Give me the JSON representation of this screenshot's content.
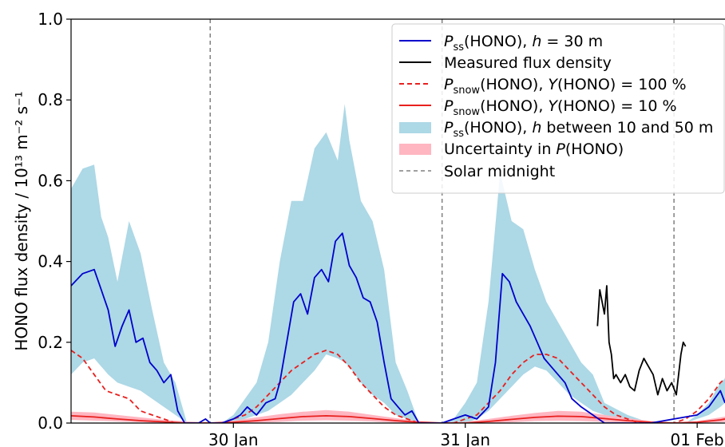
{
  "chart_data": {
    "type": "line",
    "title": "",
    "xlabel": "",
    "ylabel": "HONO flux density / 10¹³ m⁻² s⁻¹",
    "ylim": [
      0.0,
      1.0
    ],
    "xlim": [
      29.3,
      32.12
    ],
    "y_ticks": [
      "0.0",
      "0.2",
      "0.4",
      "0.6",
      "0.8",
      "1.0"
    ],
    "x_ticks": [
      {
        "x": 30.0,
        "label": "30 Jan"
      },
      {
        "x": 31.0,
        "label": "31 Jan"
      },
      {
        "x": 32.0,
        "label": "01 Feb"
      }
    ],
    "grid": false,
    "legend_position": "top-right",
    "legend": {
      "pss_h30": {
        "base": "P",
        "sub": "ss",
        "text": "(HONO), ",
        "var": "h",
        "rest": " = 30 m"
      },
      "measured": {
        "text": "Measured flux density"
      },
      "snow100": {
        "base": "P",
        "sub": "snow",
        "text": "(HONO), ",
        "var": "Y",
        "rest": "(HONO) = 100 %"
      },
      "snow10": {
        "base": "P",
        "sub": "snow",
        "text": "(HONO), ",
        "var": "Y",
        "rest": "(HONO) = 10 %"
      },
      "pss_range": {
        "base": "P",
        "sub": "ss",
        "text": "(HONO), ",
        "var": "h",
        "rest": " between 10 and 50 m"
      },
      "uncertainty": {
        "pre": "Uncertainty in ",
        "base": "P",
        "rest": "(HONO)"
      },
      "midnight": {
        "text": "Solar midnight"
      }
    },
    "colors": {
      "pss_h30": "#0000cc",
      "measured": "#000000",
      "snow": "#e8201e",
      "pss_range": "#add8e6",
      "uncertainty": "#ffb6c1",
      "midnight": "#808080"
    },
    "solar_midnight": [
      29.9,
      30.9,
      31.9
    ],
    "series": [
      {
        "key": "pss_h30",
        "x": [
          29.3,
          29.35,
          29.4,
          29.43,
          29.46,
          29.49,
          29.52,
          29.55,
          29.58,
          29.61,
          29.64,
          29.67,
          29.7,
          29.73,
          29.76,
          29.79,
          29.82,
          29.85,
          29.88,
          29.9,
          29.95,
          30.0,
          30.03,
          30.06,
          30.1,
          30.14,
          30.18,
          30.2,
          30.23,
          30.26,
          30.29,
          30.32,
          30.35,
          30.38,
          30.41,
          30.44,
          30.47,
          30.5,
          30.53,
          30.56,
          30.59,
          30.62,
          30.65,
          30.68,
          30.71,
          30.74,
          30.77,
          30.8,
          30.85,
          30.9,
          30.95,
          31.0,
          31.05,
          31.1,
          31.13,
          31.16,
          31.19,
          31.22,
          31.25,
          31.28,
          31.31,
          31.34,
          31.37,
          31.4,
          31.43,
          31.46,
          31.5,
          31.55,
          31.6,
          31.65,
          31.7,
          31.8,
          31.9,
          32.0,
          32.05,
          32.1,
          32.12
        ],
        "y": [
          0.34,
          0.37,
          0.38,
          0.33,
          0.28,
          0.19,
          0.24,
          0.28,
          0.2,
          0.21,
          0.15,
          0.13,
          0.1,
          0.12,
          0.03,
          0.0,
          0.0,
          0.0,
          0.01,
          0.0,
          0.0,
          0.01,
          0.02,
          0.04,
          0.02,
          0.05,
          0.06,
          0.1,
          0.2,
          0.3,
          0.32,
          0.27,
          0.36,
          0.38,
          0.35,
          0.45,
          0.47,
          0.39,
          0.36,
          0.31,
          0.3,
          0.25,
          0.15,
          0.06,
          0.04,
          0.02,
          0.03,
          0.0,
          0.0,
          0.0,
          0.01,
          0.02,
          0.01,
          0.04,
          0.15,
          0.37,
          0.35,
          0.3,
          0.27,
          0.24,
          0.2,
          0.16,
          0.14,
          0.12,
          0.1,
          0.06,
          0.04,
          0.02,
          0.0,
          0.0,
          0.0,
          0.0,
          0.01,
          0.02,
          0.04,
          0.08,
          0.05
        ]
      },
      {
        "key": "measured",
        "x": [
          31.57,
          31.58,
          31.6,
          31.61,
          31.62,
          31.63,
          31.64,
          31.65,
          31.67,
          31.69,
          31.71,
          31.73,
          31.75,
          31.77,
          31.79,
          31.81,
          31.83,
          31.85,
          31.87,
          31.89,
          31.91,
          31.93,
          31.94,
          31.95
        ],
        "y": [
          0.24,
          0.33,
          0.27,
          0.34,
          0.2,
          0.17,
          0.11,
          0.12,
          0.1,
          0.12,
          0.09,
          0.08,
          0.13,
          0.16,
          0.14,
          0.12,
          0.07,
          0.11,
          0.08,
          0.1,
          0.07,
          0.17,
          0.2,
          0.19
        ]
      },
      {
        "key": "snow100",
        "x": [
          29.3,
          29.35,
          29.4,
          29.45,
          29.5,
          29.55,
          29.6,
          29.65,
          29.7,
          29.75,
          29.8,
          29.85,
          29.9,
          29.95,
          30.0,
          30.05,
          30.1,
          30.15,
          30.2,
          30.25,
          30.3,
          30.35,
          30.4,
          30.45,
          30.5,
          30.55,
          30.6,
          30.65,
          30.7,
          30.75,
          30.8,
          30.85,
          30.9,
          30.95,
          31.0,
          31.05,
          31.1,
          31.15,
          31.2,
          31.25,
          31.3,
          31.35,
          31.4,
          31.45,
          31.5,
          31.55,
          31.6,
          31.65,
          31.7,
          31.75,
          31.8,
          31.85,
          31.9,
          31.95,
          32.0,
          32.05,
          32.1,
          32.12
        ],
        "y": [
          0.18,
          0.16,
          0.12,
          0.08,
          0.07,
          0.06,
          0.03,
          0.02,
          0.01,
          0.0,
          0.0,
          0.0,
          0.0,
          0.0,
          0.01,
          0.02,
          0.04,
          0.07,
          0.1,
          0.13,
          0.15,
          0.17,
          0.18,
          0.17,
          0.14,
          0.1,
          0.07,
          0.04,
          0.02,
          0.01,
          0.0,
          0.0,
          0.0,
          0.0,
          0.01,
          0.02,
          0.05,
          0.08,
          0.12,
          0.15,
          0.17,
          0.17,
          0.16,
          0.13,
          0.1,
          0.07,
          0.04,
          0.02,
          0.01,
          0.0,
          0.0,
          0.0,
          0.0,
          0.01,
          0.03,
          0.06,
          0.1,
          0.11
        ]
      },
      {
        "key": "snow10",
        "x": [
          29.3,
          29.4,
          29.5,
          29.6,
          29.7,
          29.8,
          29.9,
          30.0,
          30.1,
          30.2,
          30.3,
          30.4,
          30.5,
          30.6,
          30.7,
          30.8,
          30.9,
          31.0,
          31.1,
          31.2,
          31.3,
          31.4,
          31.5,
          31.6,
          31.7,
          31.8,
          31.9,
          32.0,
          32.1,
          32.12
        ],
        "y": [
          0.018,
          0.015,
          0.01,
          0.006,
          0.003,
          0.0,
          0.0,
          0.002,
          0.006,
          0.011,
          0.016,
          0.018,
          0.016,
          0.011,
          0.006,
          0.002,
          0.0,
          0.0,
          0.004,
          0.009,
          0.014,
          0.017,
          0.016,
          0.011,
          0.006,
          0.002,
          0.0,
          0.002,
          0.008,
          0.01
        ]
      }
    ],
    "bands": [
      {
        "key": "pss_range",
        "x": [
          29.3,
          29.35,
          29.4,
          29.43,
          29.46,
          29.5,
          29.55,
          29.6,
          29.65,
          29.7,
          29.75,
          29.8,
          29.85,
          29.9,
          29.95,
          30.0,
          30.05,
          30.1,
          30.15,
          30.2,
          30.25,
          30.3,
          30.35,
          30.4,
          30.45,
          30.48,
          30.5,
          30.55,
          30.6,
          30.65,
          30.7,
          30.75,
          30.8,
          30.85,
          30.9,
          30.95,
          31.0,
          31.05,
          31.1,
          31.15,
          31.2,
          31.25,
          31.3,
          31.35,
          31.4,
          31.45,
          31.5,
          31.55,
          31.6,
          31.7,
          31.8,
          31.9,
          31.95,
          32.0,
          32.05,
          32.1,
          32.12
        ],
        "upper": [
          0.58,
          0.63,
          0.64,
          0.51,
          0.46,
          0.35,
          0.5,
          0.42,
          0.28,
          0.15,
          0.1,
          0.0,
          0.0,
          0.0,
          0.0,
          0.02,
          0.06,
          0.1,
          0.2,
          0.4,
          0.55,
          0.55,
          0.68,
          0.72,
          0.65,
          0.79,
          0.7,
          0.55,
          0.5,
          0.38,
          0.15,
          0.08,
          0.0,
          0.0,
          0.0,
          0.01,
          0.05,
          0.1,
          0.3,
          0.62,
          0.5,
          0.48,
          0.38,
          0.3,
          0.25,
          0.2,
          0.15,
          0.12,
          0.05,
          0.02,
          0.0,
          0.0,
          0.0,
          0.02,
          0.05,
          0.1,
          0.11
        ],
        "lower": [
          0.12,
          0.15,
          0.16,
          0.14,
          0.12,
          0.1,
          0.09,
          0.08,
          0.06,
          0.04,
          0.02,
          0.0,
          0.0,
          0.0,
          0.0,
          0.0,
          0.01,
          0.02,
          0.03,
          0.05,
          0.07,
          0.1,
          0.13,
          0.17,
          0.16,
          0.15,
          0.14,
          0.1,
          0.07,
          0.05,
          0.02,
          0.01,
          0.0,
          0.0,
          0.0,
          0.0,
          0.0,
          0.01,
          0.03,
          0.06,
          0.09,
          0.12,
          0.14,
          0.13,
          0.1,
          0.07,
          0.05,
          0.03,
          0.02,
          0.01,
          0.0,
          0.0,
          0.0,
          0.01,
          0.02,
          0.04,
          0.05
        ]
      },
      {
        "key": "uncertainty",
        "x": [
          29.3,
          29.4,
          29.5,
          29.6,
          29.7,
          29.8,
          29.9,
          30.0,
          30.1,
          30.2,
          30.3,
          30.4,
          30.5,
          30.6,
          30.7,
          30.8,
          30.9,
          31.0,
          31.1,
          31.2,
          31.3,
          31.4,
          31.5,
          31.6,
          31.7,
          31.8,
          31.9,
          32.0,
          32.1,
          32.12
        ],
        "upper": [
          0.028,
          0.026,
          0.02,
          0.014,
          0.008,
          0.004,
          0.002,
          0.006,
          0.014,
          0.022,
          0.028,
          0.032,
          0.028,
          0.02,
          0.012,
          0.005,
          0.002,
          0.003,
          0.01,
          0.018,
          0.025,
          0.03,
          0.028,
          0.02,
          0.012,
          0.005,
          0.002,
          0.005,
          0.014,
          0.016
        ],
        "lower": [
          0.008,
          0.006,
          0.004,
          0.002,
          0.0,
          0.0,
          0.0,
          0.0,
          0.001,
          0.003,
          0.006,
          0.007,
          0.006,
          0.004,
          0.001,
          0.0,
          0.0,
          0.0,
          0.0,
          0.002,
          0.005,
          0.006,
          0.005,
          0.003,
          0.001,
          0.0,
          0.0,
          0.0,
          0.002,
          0.003
        ]
      }
    ]
  }
}
